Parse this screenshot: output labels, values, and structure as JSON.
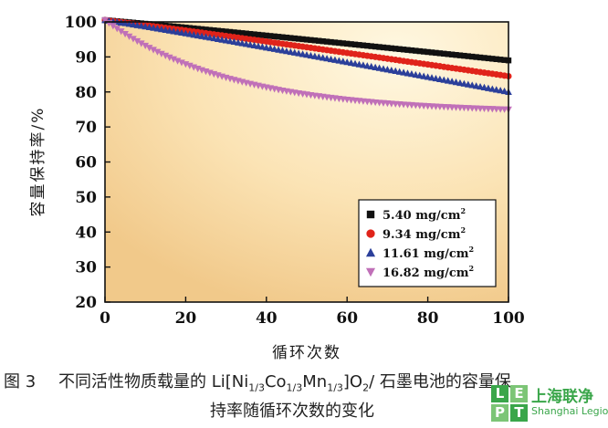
{
  "chart_data": {
    "type": "scatter",
    "xlabel": "循环次数",
    "ylabel": "容量保持率/%",
    "xlim": [
      0,
      100
    ],
    "ylim": [
      20,
      100
    ],
    "x_ticks": [
      0,
      20,
      40,
      60,
      80,
      100
    ],
    "y_ticks": [
      20,
      30,
      40,
      50,
      60,
      70,
      80,
      90,
      100
    ],
    "legend_position": "bottom-right",
    "series": [
      {
        "name": "5.40 mg/cm",
        "sup": "2",
        "marker": "square",
        "color": "#111111",
        "start": 100.5,
        "end": 89.0,
        "shape": "linear"
      },
      {
        "name": "9.34 mg/cm",
        "sup": "2",
        "marker": "circle",
        "color": "#e0231a",
        "start": 100.5,
        "end": 84.5,
        "shape": "linear"
      },
      {
        "name": "11.61 mg/cm",
        "sup": "2",
        "marker": "triangle-up",
        "color": "#2b3f9a",
        "start": 100.5,
        "end": 80.0,
        "shape": "linear"
      },
      {
        "name": "16.82 mg/cm",
        "sup": "2",
        "marker": "triangle-down",
        "color": "#c070b8",
        "start": 100.5,
        "end": 75.0,
        "shape": "concave"
      }
    ]
  },
  "caption": {
    "fig_no": "图 3",
    "line1": "不同活性物质载量的 Li[Ni1/3Co1/3Mn1/3]O2/ 石墨电池的容量保",
    "line2": "持率随循环次数的变化"
  },
  "logo": {
    "letters": [
      "L",
      "E",
      "P",
      "T"
    ],
    "cn": "上海联净",
    "en": "Shanghai Legion"
  }
}
